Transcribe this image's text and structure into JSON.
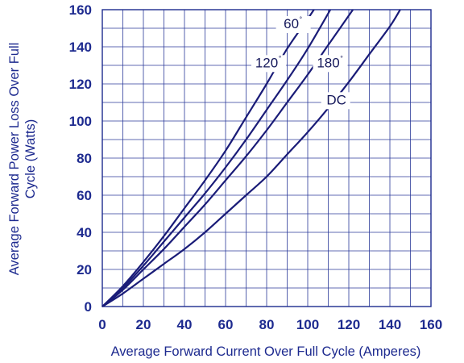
{
  "chart_data": {
    "type": "line",
    "title": "",
    "xlabel": "Average Forward Current Over Full Cycle (Amperes)",
    "ylabel_lines": [
      "Average Forward Power Loss Over Full",
      "Cycle (Watts)"
    ],
    "xlim": [
      0,
      160
    ],
    "ylim": [
      0,
      160
    ],
    "xticks": [
      0,
      20,
      40,
      60,
      80,
      100,
      120,
      140,
      160
    ],
    "yticks": [
      0,
      20,
      40,
      60,
      80,
      100,
      120,
      140,
      160
    ],
    "grid_step_x": 10,
    "grid_step_y": 10,
    "grid": true,
    "legend": "none",
    "colors": {
      "axis": "#1d2a8f",
      "grid": "#2b3a9a",
      "line": "#1a1c78",
      "background": "#ffffff"
    },
    "series": [
      {
        "name": "60°",
        "label_text": "60",
        "label_deg": "°",
        "label_x": 92,
        "label_y": 150,
        "x": [
          0,
          10,
          20,
          30,
          40,
          50,
          60,
          70,
          80,
          90,
          100,
          103
        ],
        "y": [
          0,
          11,
          24,
          38,
          53,
          68,
          84,
          102,
          120,
          139,
          155,
          160
        ]
      },
      {
        "name": "120°",
        "label_text": "120",
        "label_deg": "°",
        "label_x": 80,
        "label_y": 129,
        "x": [
          0,
          10,
          20,
          30,
          40,
          50,
          60,
          70,
          80,
          90,
          100,
          111
        ],
        "y": [
          0,
          10,
          22,
          35,
          48,
          61,
          75,
          90,
          106,
          122,
          139,
          160
        ]
      },
      {
        "name": "180°",
        "label_text": "180",
        "label_deg": "°",
        "label_x": 110,
        "label_y": 129,
        "x": [
          0,
          10,
          20,
          30,
          40,
          50,
          60,
          70,
          80,
          90,
          100,
          110,
          122
        ],
        "y": [
          0,
          9,
          20,
          31,
          43,
          55,
          68,
          81,
          95,
          110,
          125,
          141,
          160
        ]
      },
      {
        "name": "DC",
        "label_text": "DC",
        "label_deg": "",
        "label_x": 114,
        "label_y": 109,
        "x": [
          0,
          10,
          20,
          30,
          40,
          50,
          60,
          70,
          80,
          90,
          100,
          110,
          120,
          130,
          140,
          145
        ],
        "y": [
          0,
          7,
          15,
          23,
          31,
          40,
          50,
          60,
          70,
          82,
          94,
          107,
          121,
          136,
          151,
          160
        ]
      }
    ]
  }
}
